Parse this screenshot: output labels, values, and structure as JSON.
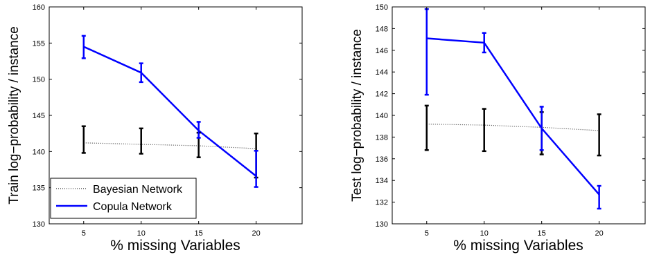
{
  "chart_data": [
    {
      "type": "line",
      "xlabel": "% missing Variables",
      "ylabel": "Train log−probability / instance",
      "xlim": [
        2,
        24
      ],
      "ylim": [
        130,
        160
      ],
      "x": [
        5,
        10,
        15,
        20
      ],
      "x_tick_labels": [
        "5",
        "10",
        "15",
        "20"
      ],
      "y_ticks": [
        130,
        135,
        140,
        145,
        150,
        155,
        160
      ],
      "y_tick_labels": [
        "130",
        "135",
        "140",
        "145",
        "150",
        "155",
        "160"
      ],
      "grid": false,
      "legend_position": "bottom-left",
      "series": [
        {
          "name": "Bayesian Network",
          "color": "#000000",
          "line_style": "dotted",
          "values": [
            141.2,
            141.0,
            140.8,
            140.4
          ],
          "error_low": [
            139.8,
            139.7,
            139.2,
            136.4
          ],
          "error_high": [
            143.5,
            143.2,
            142.6,
            142.5
          ]
        },
        {
          "name": "Copula Network",
          "color": "#0000ff",
          "line_style": "solid",
          "values": [
            154.5,
            150.9,
            142.9,
            136.6
          ],
          "error_low": [
            152.9,
            149.6,
            141.9,
            135.1
          ],
          "error_high": [
            156.0,
            152.2,
            144.1,
            140.1
          ]
        }
      ]
    },
    {
      "type": "line",
      "xlabel": "% missing Variables",
      "ylabel": "Test log−probability / instance",
      "xlim": [
        2,
        24
      ],
      "ylim": [
        130,
        150
      ],
      "x": [
        5,
        10,
        15,
        20
      ],
      "x_tick_labels": [
        "5",
        "10",
        "15",
        "20"
      ],
      "y_ticks": [
        130,
        132,
        134,
        136,
        138,
        140,
        142,
        144,
        146,
        148,
        150
      ],
      "y_tick_labels": [
        "130",
        "132",
        "134",
        "136",
        "138",
        "140",
        "142",
        "144",
        "146",
        "148",
        "150"
      ],
      "grid": false,
      "series": [
        {
          "color": "#000000",
          "line_style": "dotted",
          "values": [
            139.2,
            139.1,
            138.9,
            138.6
          ],
          "error_low": [
            136.8,
            136.7,
            136.4,
            136.3
          ],
          "error_high": [
            140.9,
            140.6,
            140.3,
            140.1
          ]
        },
        {
          "color": "#0000ff",
          "line_style": "solid",
          "values": [
            147.1,
            146.7,
            138.8,
            132.7
          ],
          "error_low": [
            141.9,
            145.8,
            136.8,
            131.4
          ],
          "error_high": [
            149.8,
            147.6,
            140.8,
            133.5
          ]
        }
      ]
    }
  ]
}
